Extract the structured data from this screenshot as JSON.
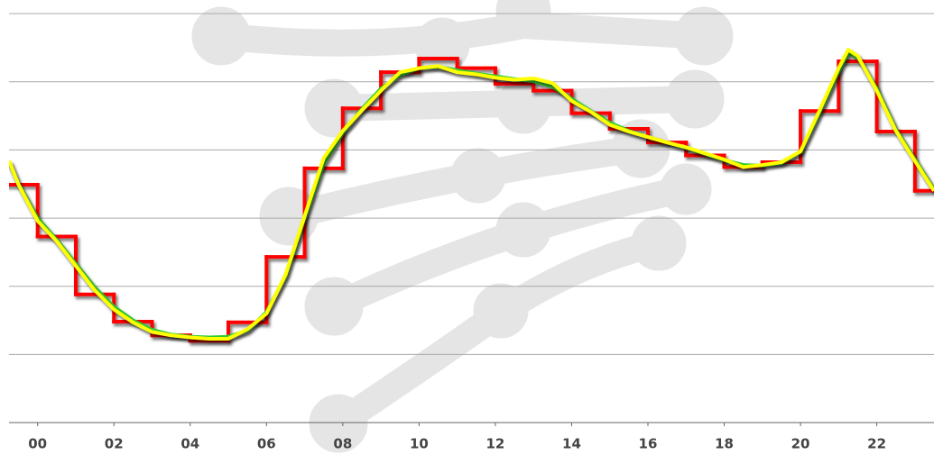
{
  "chart_data": {
    "type": "line",
    "xlim": [
      -0.75,
      23.5
    ],
    "ylim": [
      0,
      6.2
    ],
    "xticks": [
      {
        "value": 0,
        "label": "00"
      },
      {
        "value": 2,
        "label": "02"
      },
      {
        "value": 4,
        "label": "04"
      },
      {
        "value": 6,
        "label": "06"
      },
      {
        "value": 8,
        "label": "08"
      },
      {
        "value": 10,
        "label": "10"
      },
      {
        "value": 12,
        "label": "12"
      },
      {
        "value": 14,
        "label": "14"
      },
      {
        "value": 16,
        "label": "16"
      },
      {
        "value": 18,
        "label": "18"
      },
      {
        "value": 20,
        "label": "20"
      },
      {
        "value": 22,
        "label": "22"
      }
    ],
    "yticks": [
      0,
      1,
      2,
      3,
      4,
      5,
      6
    ],
    "grid": true,
    "series": [
      {
        "color": "#ff0000",
        "shape": "step",
        "x": [
          -1,
          0,
          1,
          2,
          3,
          4,
          5,
          6,
          7,
          8,
          9,
          10,
          11,
          12,
          13,
          14,
          15,
          16,
          17,
          18,
          19,
          20,
          21,
          22,
          23
        ],
        "values": [
          3.49,
          2.73,
          1.88,
          1.48,
          1.28,
          1.2,
          1.47,
          2.43,
          3.73,
          4.61,
          5.14,
          5.34,
          5.2,
          4.97,
          4.87,
          4.54,
          4.31,
          4.11,
          3.92,
          3.75,
          3.82,
          4.57,
          5.3,
          4.27,
          3.4
        ]
      },
      {
        "color": "#33cc33",
        "shape": "line",
        "x": [
          -0.75,
          -0.5,
          0,
          0.5,
          1,
          1.5,
          2,
          2.5,
          3,
          3.5,
          4,
          4.5,
          5,
          5.5,
          6,
          6.5,
          7,
          7.5,
          8,
          8.5,
          9,
          9.5,
          10,
          10.5,
          11,
          11.5,
          12,
          12.5,
          13,
          13.5,
          14,
          14.5,
          15,
          15.5,
          16,
          16.5,
          17,
          17.5,
          18,
          18.5,
          19,
          19.5,
          20,
          20.5,
          21,
          21.25,
          21.5,
          22,
          22.5,
          23,
          23.5
        ],
        "values": [
          3.82,
          3.5,
          3.0,
          2.68,
          2.33,
          1.98,
          1.7,
          1.5,
          1.36,
          1.29,
          1.26,
          1.25,
          1.26,
          1.35,
          1.62,
          2.15,
          3.0,
          3.8,
          4.25,
          4.6,
          4.9,
          5.1,
          5.2,
          5.22,
          5.17,
          5.12,
          5.08,
          5.04,
          5.01,
          4.93,
          4.75,
          4.57,
          4.4,
          4.28,
          4.19,
          4.11,
          4.03,
          3.94,
          3.85,
          3.78,
          3.77,
          3.81,
          3.97,
          4.55,
          5.15,
          5.42,
          5.36,
          4.9,
          4.3,
          3.86,
          3.42
        ]
      },
      {
        "color": "#ffff00",
        "shape": "line",
        "x": [
          -0.75,
          -0.5,
          0,
          0.5,
          1,
          1.5,
          2,
          2.5,
          3,
          3.5,
          4,
          4.5,
          5,
          5.5,
          6,
          6.5,
          7,
          7.5,
          8,
          8.5,
          9,
          9.5,
          10,
          10.5,
          11,
          11.5,
          12,
          12.5,
          13,
          13.5,
          14,
          14.5,
          15,
          15.5,
          16,
          16.5,
          17,
          17.5,
          18,
          18.5,
          19,
          19.5,
          20,
          20.5,
          21,
          21.25,
          21.5,
          22,
          22.5,
          23,
          23.5
        ],
        "values": [
          3.84,
          3.49,
          2.96,
          2.66,
          2.3,
          1.94,
          1.66,
          1.47,
          1.33,
          1.28,
          1.25,
          1.23,
          1.23,
          1.37,
          1.6,
          2.17,
          3.03,
          3.88,
          4.28,
          4.58,
          4.87,
          5.14,
          5.2,
          5.23,
          5.14,
          5.11,
          5.06,
          5.03,
          5.05,
          4.98,
          4.72,
          4.56,
          4.37,
          4.27,
          4.19,
          4.11,
          4.04,
          3.95,
          3.86,
          3.75,
          3.78,
          3.82,
          3.98,
          4.58,
          5.2,
          5.47,
          5.38,
          4.87,
          4.28,
          3.84,
          3.4
        ]
      }
    ]
  }
}
